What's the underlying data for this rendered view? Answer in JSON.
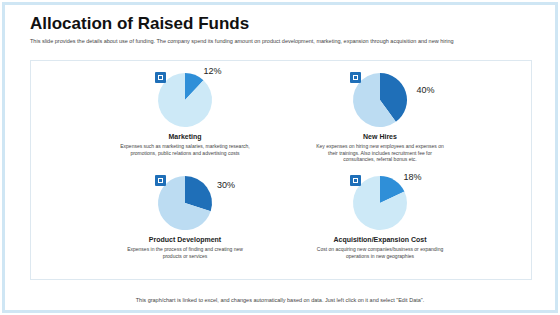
{
  "title": "Allocation of Raised Funds",
  "subtitle": "This slide provides the details about use of funding. The company spend its funding amount on product development, marketing, expansion through acquisition and new hiring",
  "footer": "This graph/chart is linked to excel, and changes automatically based on data. Just left click on it and select \"Edit Data\".",
  "chart_data": [
    {
      "type": "pie",
      "title": "Marketing",
      "subtitle": "Expenses such as marketing salaries, marketing research, promotions, public relations and advertising costs",
      "categories": [
        null,
        null
      ],
      "values": [
        12,
        88
      ],
      "value_labels": [
        "12%",
        null
      ],
      "colors": [
        "#2f8fd8",
        "#cde9f7"
      ]
    },
    {
      "type": "pie",
      "title": "New Hires",
      "subtitle": "Key expenses on hiring new employees and expenses on their trainings. Also includes recruitment fee for consultancies, referral bonus etc.",
      "categories": [
        null,
        null
      ],
      "values": [
        40,
        60
      ],
      "value_labels": [
        "40%",
        null
      ],
      "colors": [
        "#1f6fb8",
        "#bcdcf2"
      ]
    },
    {
      "type": "pie",
      "title": "Product Development",
      "subtitle": "Expenses in the process of finding and creating new products or services",
      "categories": [
        null,
        null
      ],
      "values": [
        30,
        70
      ],
      "value_labels": [
        "30%",
        null
      ],
      "colors": [
        "#1f6fb8",
        "#bcdcf2"
      ]
    },
    {
      "type": "pie",
      "title": "Acquisition/Expansion Cost",
      "subtitle": "Cost on acquiring new companies/business or expanding operations in new geographies",
      "categories": [
        null,
        null
      ],
      "values": [
        18,
        82
      ],
      "value_labels": [
        "18%",
        null
      ],
      "colors": [
        "#2f8fd8",
        "#cde9f7"
      ]
    }
  ]
}
